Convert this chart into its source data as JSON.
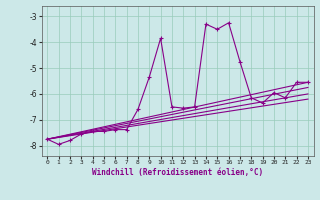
{
  "xlabel": "Windchill (Refroidissement éolien,°C)",
  "xlim": [
    -0.5,
    23.5
  ],
  "ylim": [
    -8.4,
    -2.6
  ],
  "yticks": [
    -8,
    -7,
    -6,
    -5,
    -4,
    -3
  ],
  "xticks": [
    0,
    1,
    2,
    3,
    4,
    5,
    6,
    7,
    8,
    9,
    10,
    11,
    12,
    13,
    14,
    15,
    16,
    17,
    18,
    19,
    20,
    21,
    22,
    23
  ],
  "bg_color": "#cce8e8",
  "line_color": "#880088",
  "grid_color": "#99ccbb",
  "series1": [
    [
      0,
      -7.75
    ],
    [
      1,
      -7.95
    ],
    [
      2,
      -7.8
    ],
    [
      3,
      -7.55
    ],
    [
      4,
      -7.45
    ],
    [
      5,
      -7.45
    ],
    [
      6,
      -7.38
    ],
    [
      7,
      -7.38
    ],
    [
      8,
      -6.6
    ],
    [
      9,
      -5.35
    ],
    [
      10,
      -3.85
    ],
    [
      11,
      -6.5
    ],
    [
      12,
      -6.55
    ],
    [
      13,
      -6.5
    ],
    [
      14,
      -3.3
    ],
    [
      15,
      -3.5
    ],
    [
      16,
      -3.25
    ],
    [
      17,
      -4.75
    ],
    [
      18,
      -6.15
    ],
    [
      19,
      -6.35
    ],
    [
      20,
      -5.95
    ],
    [
      21,
      -6.15
    ],
    [
      22,
      -5.55
    ],
    [
      23,
      -5.55
    ]
  ],
  "line2": [
    [
      0,
      -7.75
    ],
    [
      23,
      -5.55
    ]
  ],
  "line3": [
    [
      0,
      -7.75
    ],
    [
      23,
      -5.75
    ]
  ],
  "line4": [
    [
      0,
      -7.75
    ],
    [
      23,
      -6.0
    ]
  ],
  "line5": [
    [
      0,
      -7.75
    ],
    [
      23,
      -6.2
    ]
  ]
}
